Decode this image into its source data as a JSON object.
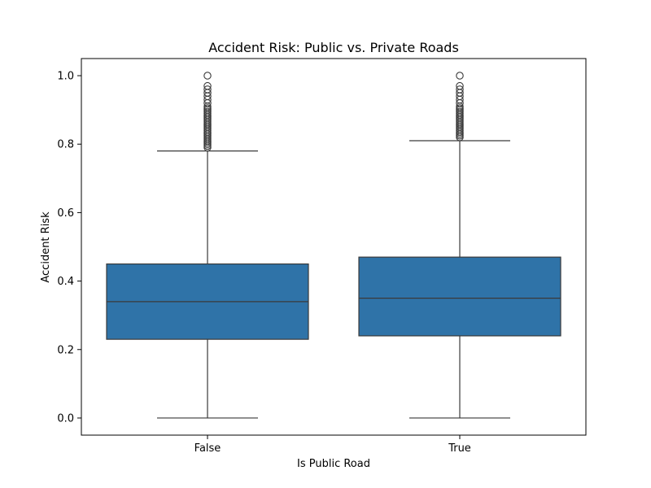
{
  "chart_data": {
    "type": "boxplot",
    "title": "Accident Risk: Public vs. Private Roads",
    "xlabel": "Is Public Road",
    "ylabel": "Accident Risk",
    "categories": [
      "False",
      "True"
    ],
    "ylim": [
      -0.05,
      1.05
    ],
    "yticks": [
      "0.0",
      "0.2",
      "0.4",
      "0.6",
      "0.8",
      "1.0"
    ],
    "grid": false,
    "box_color": "#2f73a8",
    "line_color": "#3a3a3a",
    "boxes": [
      {
        "category": "False",
        "whisker_low": 0.0,
        "q1": 0.23,
        "median": 0.34,
        "q3": 0.45,
        "whisker_high": 0.78,
        "outliers": [
          0.79,
          0.795,
          0.8,
          0.805,
          0.81,
          0.815,
          0.82,
          0.825,
          0.83,
          0.835,
          0.84,
          0.845,
          0.85,
          0.855,
          0.86,
          0.865,
          0.87,
          0.875,
          0.88,
          0.885,
          0.89,
          0.895,
          0.9,
          0.905,
          0.91,
          0.92,
          0.93,
          0.94,
          0.95,
          0.96,
          0.97,
          1.0
        ]
      },
      {
        "category": "True",
        "whisker_low": 0.0,
        "q1": 0.24,
        "median": 0.35,
        "q3": 0.47,
        "whisker_high": 0.81,
        "outliers": [
          0.82,
          0.825,
          0.83,
          0.835,
          0.84,
          0.845,
          0.85,
          0.855,
          0.86,
          0.865,
          0.87,
          0.875,
          0.88,
          0.885,
          0.89,
          0.895,
          0.9,
          0.905,
          0.91,
          0.92,
          0.93,
          0.94,
          0.95,
          0.96,
          0.97,
          1.0
        ]
      }
    ]
  }
}
